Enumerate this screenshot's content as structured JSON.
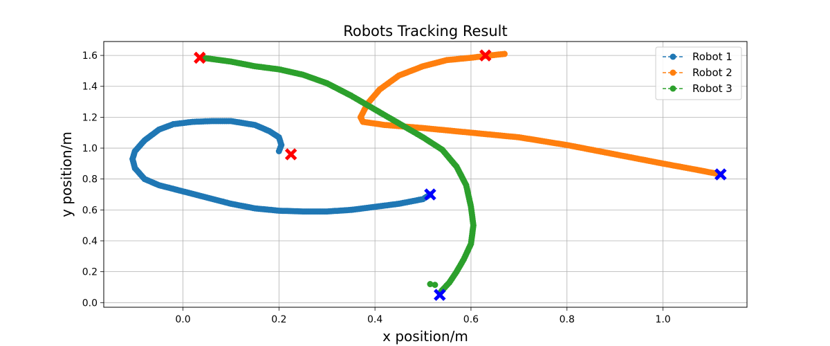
{
  "chart_data": {
    "type": "scatter",
    "title": "Robots Tracking Result",
    "xlabel": "x position/m",
    "ylabel": "y position/m",
    "xlim": [
      -0.165,
      1.175
    ],
    "ylim": [
      -0.03,
      1.69
    ],
    "xticks": [
      "0.0",
      "0.2",
      "0.4",
      "0.6",
      "0.8",
      "1.0"
    ],
    "yticks": [
      "0.0",
      "0.2",
      "0.4",
      "0.6",
      "0.8",
      "1.0",
      "1.2",
      "1.4",
      "1.6"
    ],
    "grid": true,
    "legend_position": "top-right",
    "series": [
      {
        "name": "Robot 1",
        "color": "#1f77b4",
        "path": [
          [
            0.2,
            0.98
          ],
          [
            0.205,
            1.02
          ],
          [
            0.2,
            1.07
          ],
          [
            0.18,
            1.11
          ],
          [
            0.15,
            1.15
          ],
          [
            0.1,
            1.175
          ],
          [
            0.06,
            1.175
          ],
          [
            0.02,
            1.17
          ],
          [
            -0.02,
            1.155
          ],
          [
            -0.05,
            1.12
          ],
          [
            -0.08,
            1.05
          ],
          [
            -0.1,
            0.98
          ],
          [
            -0.105,
            0.93
          ],
          [
            -0.1,
            0.87
          ],
          [
            -0.08,
            0.8
          ],
          [
            -0.05,
            0.76
          ],
          [
            0.0,
            0.72
          ],
          [
            0.05,
            0.68
          ],
          [
            0.1,
            0.64
          ],
          [
            0.15,
            0.61
          ],
          [
            0.2,
            0.595
          ],
          [
            0.25,
            0.59
          ],
          [
            0.3,
            0.59
          ],
          [
            0.35,
            0.6
          ],
          [
            0.4,
            0.62
          ],
          [
            0.45,
            0.64
          ],
          [
            0.5,
            0.67
          ],
          [
            0.515,
            0.7
          ]
        ],
        "start": [
          0.225,
          0.96
        ],
        "end": [
          0.515,
          0.7
        ]
      },
      {
        "name": "Robot 2",
        "color": "#ff7f0e",
        "path": [
          [
            0.67,
            1.61
          ],
          [
            0.64,
            1.6
          ],
          [
            0.6,
            1.585
          ],
          [
            0.55,
            1.57
          ],
          [
            0.5,
            1.53
          ],
          [
            0.45,
            1.47
          ],
          [
            0.41,
            1.38
          ],
          [
            0.385,
            1.29
          ],
          [
            0.37,
            1.2
          ],
          [
            0.375,
            1.17
          ],
          [
            0.42,
            1.15
          ],
          [
            0.5,
            1.13
          ],
          [
            0.6,
            1.1
          ],
          [
            0.7,
            1.07
          ],
          [
            0.8,
            1.02
          ],
          [
            0.9,
            0.96
          ],
          [
            1.0,
            0.9
          ],
          [
            1.07,
            0.86
          ],
          [
            1.12,
            0.83
          ]
        ],
        "start": [
          0.63,
          1.6
        ],
        "end": [
          1.12,
          0.83
        ]
      },
      {
        "name": "Robot 3",
        "color": "#2ca02c",
        "path": [
          [
            0.04,
            1.585
          ],
          [
            0.1,
            1.56
          ],
          [
            0.15,
            1.53
          ],
          [
            0.2,
            1.51
          ],
          [
            0.25,
            1.475
          ],
          [
            0.3,
            1.42
          ],
          [
            0.35,
            1.34
          ],
          [
            0.4,
            1.25
          ],
          [
            0.45,
            1.16
          ],
          [
            0.5,
            1.07
          ],
          [
            0.54,
            0.99
          ],
          [
            0.57,
            0.88
          ],
          [
            0.59,
            0.76
          ],
          [
            0.6,
            0.62
          ],
          [
            0.605,
            0.5
          ],
          [
            0.6,
            0.38
          ],
          [
            0.585,
            0.28
          ],
          [
            0.57,
            0.2
          ],
          [
            0.555,
            0.13
          ],
          [
            0.54,
            0.08
          ],
          [
            0.535,
            0.06
          ]
        ],
        "extra_points": [
          [
            0.515,
            0.12
          ],
          [
            0.525,
            0.115
          ]
        ],
        "start": [
          0.035,
          1.585
        ],
        "end": [
          0.535,
          0.05
        ]
      }
    ],
    "start_marker_color": "#ff0000",
    "end_marker_color": "#0000ff"
  }
}
